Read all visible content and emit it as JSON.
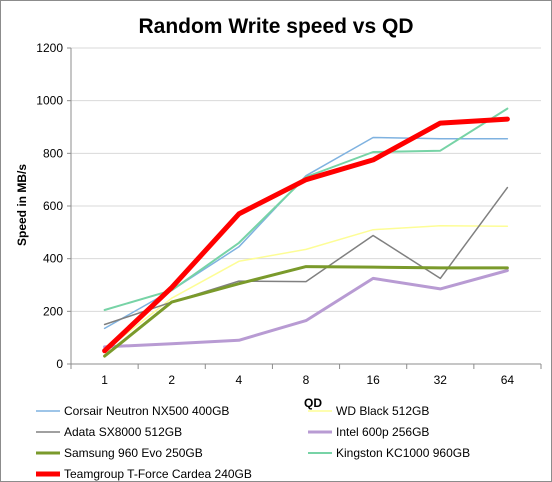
{
  "chart_data": {
    "type": "line",
    "title": "Random Write speed vs QD",
    "xlabel": "QD",
    "ylabel": "Speed in MB/s",
    "categories": [
      "1",
      "2",
      "4",
      "8",
      "16",
      "32",
      "64"
    ],
    "ylim": [
      0,
      1200
    ],
    "yticks": [
      "0",
      "200",
      "400",
      "600",
      "800",
      "1000",
      "1200"
    ],
    "grid": true,
    "legend_position": "bottom",
    "series": [
      {
        "name": "Corsair Neutron NX500 400GB",
        "color": "#7fb2e0",
        "width": 1.5,
        "values": [
          135,
          280,
          445,
          715,
          860,
          855,
          855
        ]
      },
      {
        "name": "WD Black 512GB",
        "color": "#fdfd96",
        "width": 1.5,
        "values": [
          50,
          250,
          390,
          435,
          510,
          525,
          523
        ]
      },
      {
        "name": "Adata SX8000 512GB",
        "color": "#808080",
        "width": 1.5,
        "values": [
          150,
          235,
          315,
          313,
          488,
          325,
          670
        ]
      },
      {
        "name": "Intel 600p 256GB",
        "color": "#b89bd3",
        "width": 3,
        "values": [
          65,
          77,
          90,
          165,
          325,
          285,
          355
        ]
      },
      {
        "name": "Samsung 960 Evo 250GB",
        "color": "#7a9a2b",
        "width": 3,
        "values": [
          30,
          235,
          305,
          370,
          368,
          365,
          365
        ]
      },
      {
        "name": "Kingston KC1000 960GB",
        "color": "#77d3a6",
        "width": 2,
        "values": [
          205,
          280,
          460,
          710,
          805,
          810,
          970
        ]
      },
      {
        "name": "Teamgroup T-Force Cardea 240GB",
        "color": "#ff0000",
        "width": 5,
        "values": [
          50,
          290,
          570,
          700,
          775,
          915,
          930
        ]
      }
    ]
  }
}
